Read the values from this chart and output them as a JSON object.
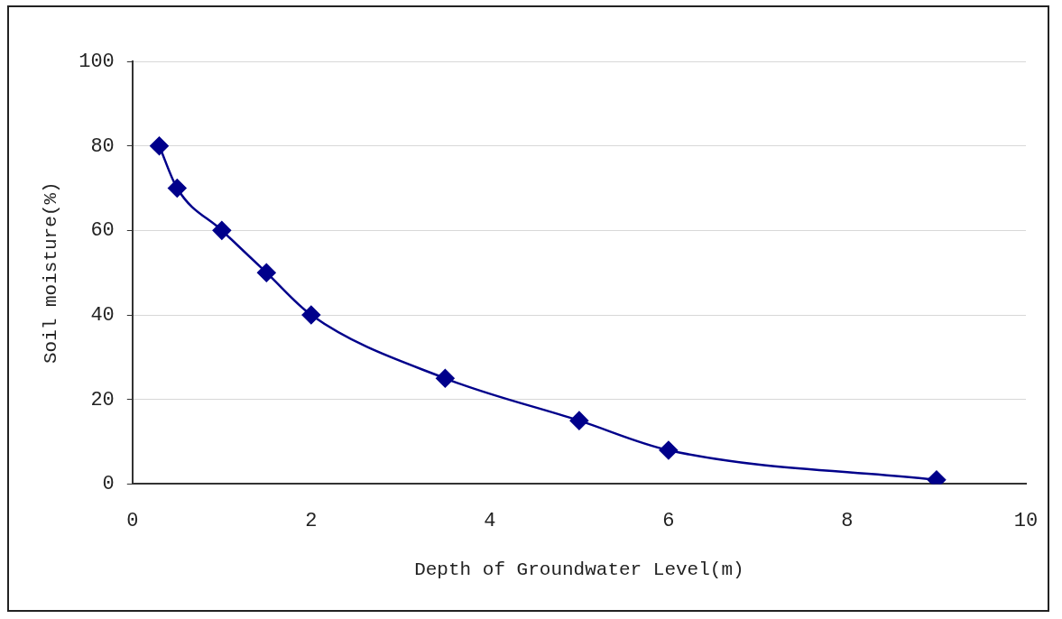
{
  "chart_data": {
    "type": "line",
    "xlabel": "Depth of Groundwater Level(m)",
    "ylabel": "Soil moisture(%)",
    "x": [
      0.3,
      0.5,
      1,
      1.5,
      2,
      3.5,
      5,
      6,
      9
    ],
    "series": [
      {
        "color": "#00008b",
        "values": [
          80,
          70,
          60,
          50,
          40,
          25,
          15,
          8,
          1
        ]
      }
    ],
    "xlim": [
      0,
      10
    ],
    "xticks": [
      0,
      2,
      4,
      6,
      8,
      10
    ],
    "ylim": [
      0,
      100
    ],
    "yticks": [
      0,
      20,
      40,
      60,
      80,
      100
    ],
    "grid": "y",
    "marker": "diamond",
    "line_style": "solid"
  }
}
